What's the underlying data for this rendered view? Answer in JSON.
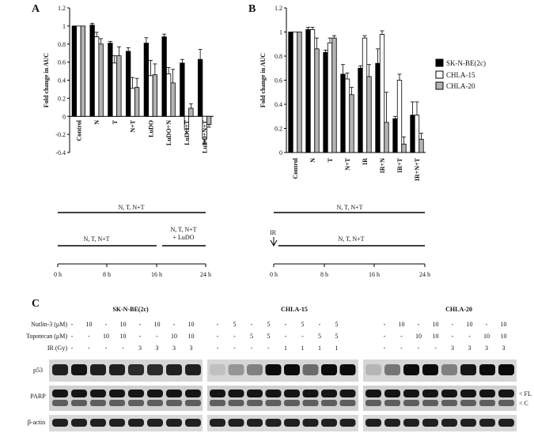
{
  "panels": {
    "a": "A",
    "b": "B",
    "c": "C"
  },
  "colors": {
    "series": [
      "#000000",
      "#ffffff",
      "#b3b3b3"
    ],
    "stroke": "#000000"
  },
  "chart_data": [
    {
      "type": "bar",
      "ylabel": "Fold change in AUC",
      "ylim": [
        -0.4,
        1.2
      ],
      "yticks": [
        "-0.4",
        "-0.2",
        "0",
        "0.2",
        "0.4",
        "0.6",
        "0.8",
        "1",
        "1.2"
      ],
      "categories": [
        "Control",
        "N",
        "T",
        "N+T",
        "LuDO",
        "LuDO+N",
        "LuDO+T",
        "LuDO+N+T"
      ],
      "series": [
        {
          "values": [
            1.0,
            1.01,
            0.81,
            0.72,
            0.81,
            0.88,
            0.59,
            0.63
          ],
          "errors": [
            0,
            0.02,
            0.02,
            0.04,
            0.06,
            0.03,
            0.04,
            0.11
          ]
        },
        {
          "values": [
            1.0,
            0.88,
            0.59,
            0.31,
            0.45,
            0.47,
            -0.14,
            -0.25
          ],
          "errors": [
            0,
            0.05,
            0.08,
            0.12,
            0.17,
            0.07,
            0.05,
            0.05
          ]
        },
        {
          "values": [
            1.0,
            0.8,
            0.67,
            0.32,
            0.46,
            0.37,
            0.09,
            -0.09
          ],
          "errors": [
            0,
            0.06,
            0.1,
            0.1,
            0.12,
            0.15,
            0.05,
            0.03
          ]
        }
      ]
    },
    {
      "type": "bar",
      "ylabel": "Fold change in AUC",
      "ylim": [
        0,
        1.2
      ],
      "yticks": [
        "0",
        "0.2",
        "0.4",
        "0.6",
        "0.8",
        "1",
        "1.2"
      ],
      "categories": [
        "Control",
        "N",
        "T",
        "N+T",
        "IR",
        "IR+N",
        "IR+T",
        "IR+N+T"
      ],
      "series": [
        {
          "name": "SK-N-BE(2c)",
          "values": [
            1.0,
            1.02,
            0.83,
            0.65,
            0.7,
            0.74,
            0.28,
            0.31
          ],
          "errors": [
            0,
            0.02,
            0.02,
            0.08,
            0.02,
            0.12,
            0.02,
            0.11
          ]
        },
        {
          "name": "CHLA-15",
          "values": [
            1.0,
            1.02,
            0.91,
            0.61,
            0.95,
            0.98,
            0.6,
            0.31
          ],
          "errors": [
            0,
            0.02,
            0.04,
            0.05,
            0.02,
            0.03,
            0.05,
            0.11
          ]
        },
        {
          "name": "CHLA-20",
          "values": [
            1.0,
            0.86,
            0.95,
            0.48,
            0.63,
            0.25,
            0.07,
            0.11
          ],
          "errors": [
            0,
            0.09,
            0.02,
            0.06,
            0.1,
            0.25,
            0.06,
            0.05
          ]
        }
      ]
    }
  ],
  "timeline_a": {
    "top_label": "N, T, N+T",
    "lower_label": "N, T, N+T",
    "ludo_label_1": "N, T, N+T",
    "ludo_label_2": "+ LuDO",
    "ticks": [
      "0 h",
      "8 h",
      "16 h",
      "24 h"
    ]
  },
  "timeline_b": {
    "top_label": "N, T, N+T",
    "ir_label": "IR",
    "lower_label": "N, T, N+T",
    "ticks": [
      "0 h",
      "8 h",
      "16 h",
      "24 h"
    ]
  },
  "blot": {
    "groups": [
      "SK-N-BE(2c)",
      "CHLA-15",
      "CHLA-20"
    ],
    "rows": [
      {
        "label": "Nutlin-3 (μM)",
        "values": [
          [
            "-",
            "10",
            "-",
            "10",
            "-",
            "10",
            "-",
            "10"
          ],
          [
            "-",
            "5",
            "-",
            "5",
            "-",
            "5",
            "-",
            "5"
          ],
          [
            "-",
            "10",
            "-",
            "10",
            "-",
            "10",
            "-",
            "10"
          ]
        ]
      },
      {
        "label": "Topotecan (μM)",
        "values": [
          [
            "-",
            "-",
            "10",
            "10",
            "-",
            "-",
            "10",
            "10"
          ],
          [
            "-",
            "-",
            "5",
            "5",
            "-",
            "-",
            "5",
            "5"
          ],
          [
            "-",
            "-",
            "10",
            "10",
            "-",
            "-",
            "10",
            "10"
          ]
        ]
      },
      {
        "label": "IR (Gy)",
        "values": [
          [
            "-",
            "-",
            "-",
            "-",
            "3",
            "3",
            "3",
            "3"
          ],
          [
            "-",
            "-",
            "-",
            "-",
            "1",
            "1",
            "1",
            "1"
          ],
          [
            "-",
            "-",
            "-",
            "-",
            "3",
            "3",
            "3",
            "3"
          ]
        ]
      }
    ],
    "bands": [
      "p53",
      "PARP",
      "β-actin"
    ],
    "parp_marks": [
      "< FL",
      "< C"
    ]
  }
}
